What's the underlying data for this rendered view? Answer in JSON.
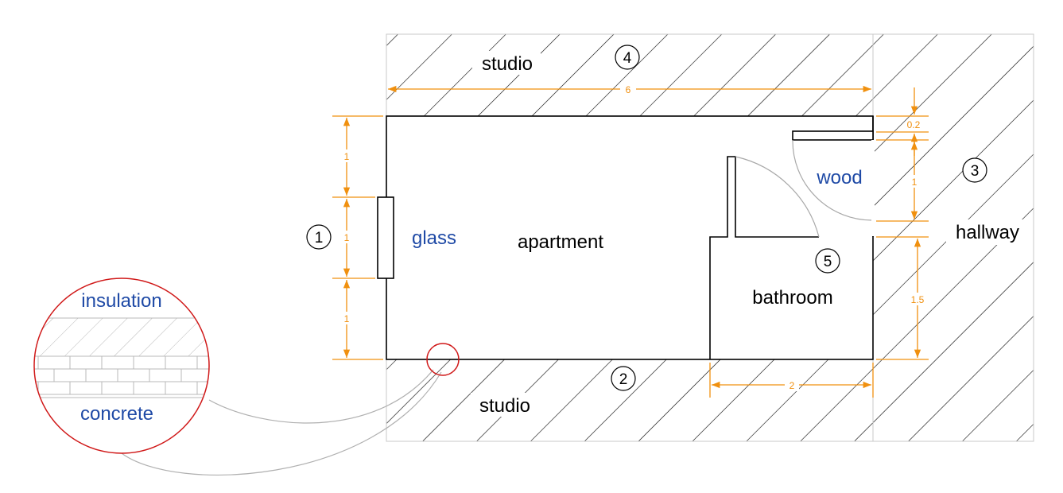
{
  "colors": {
    "dimension": "#f0900f",
    "material_text": "#1f4aa6",
    "detail_circle": "#d01818",
    "hatch": "#000000",
    "wall": "#000000",
    "leader": "#b0b0b0"
  },
  "rooms": {
    "studio_top": "studio",
    "studio_bottom": "studio",
    "apartment": "apartment",
    "bathroom": "bathroom",
    "hallway": "hallway"
  },
  "materials": {
    "glass": "glass",
    "wood": "wood",
    "insulation": "insulation",
    "concrete": "concrete"
  },
  "markers": [
    "1",
    "2",
    "3",
    "4",
    "5"
  ],
  "dimensions": {
    "overall_width": "6",
    "window_above": "1",
    "window_height": "1",
    "window_below": "1",
    "wall_thickness": "0.2",
    "door_width": "1",
    "door_to_corner": "1.5",
    "bathroom_width": "2"
  }
}
